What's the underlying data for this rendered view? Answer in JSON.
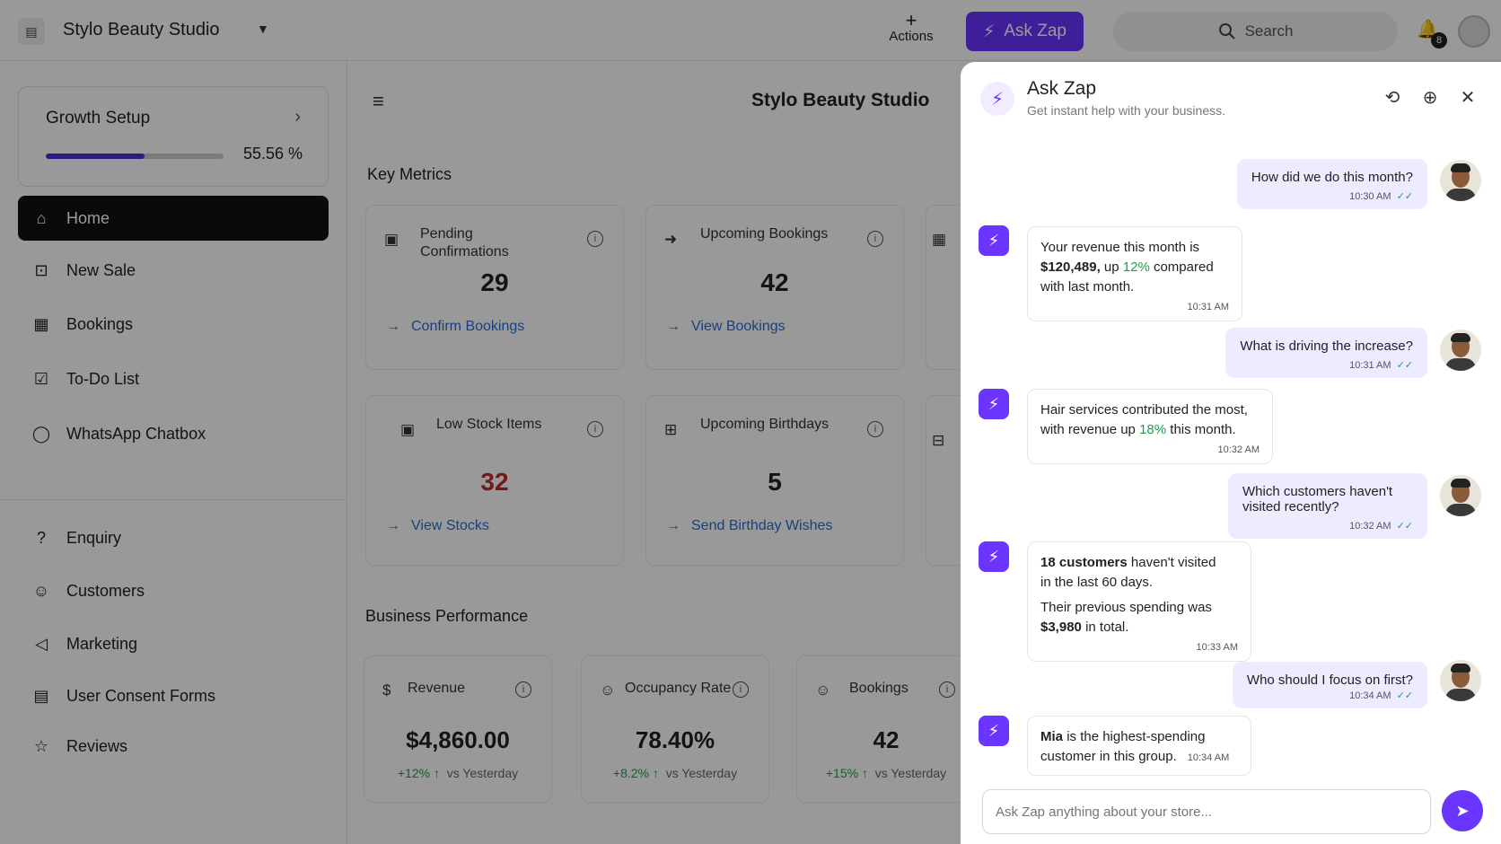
{
  "topbar": {
    "store_name": "Stylo Beauty Studio",
    "actions_label": "Actions",
    "askzap_label": "Ask Zap",
    "search_label": "Search",
    "notifications_count": "8"
  },
  "sidebar": {
    "growth": {
      "title": "Growth Setup",
      "progress_pct": "55.56 %",
      "progress_value": 55.56
    },
    "nav": [
      {
        "label": "Home",
        "icon": "home-icon",
        "active": true
      },
      {
        "label": "New Sale",
        "icon": "cart-icon"
      },
      {
        "label": "Bookings",
        "icon": "calendar-icon"
      },
      {
        "label": "To-Do List",
        "icon": "checkbox-icon"
      },
      {
        "label": "WhatsApp Chatbox",
        "icon": "whatsapp-icon"
      }
    ],
    "nav2": [
      {
        "label": "Enquiry",
        "icon": "question-icon"
      },
      {
        "label": "Customers",
        "icon": "users-icon"
      },
      {
        "label": "Marketing",
        "icon": "megaphone-icon"
      },
      {
        "label": "User Consent Forms",
        "icon": "document-icon"
      },
      {
        "label": "Reviews",
        "icon": "star-icon"
      }
    ]
  },
  "main": {
    "title": "Stylo Beauty Studio",
    "key_metrics_title": "Key Metrics",
    "cards": [
      {
        "title": "Pending Confirmations",
        "value": "29",
        "link": "Confirm Bookings"
      },
      {
        "title": "Upcoming Bookings",
        "value": "42",
        "link": "View Bookings"
      },
      {
        "title": "Low Stock Items",
        "value": "32",
        "link": "View Stocks",
        "alert": true
      },
      {
        "title": "Upcoming Birthdays",
        "value": "5",
        "link": "Send Birthday Wishes"
      }
    ],
    "business_title": "Business Performance",
    "perf": [
      {
        "title": "Revenue",
        "value": "$4,860.00",
        "change": "+12%",
        "compare": "vs Yesterday"
      },
      {
        "title": "Occupancy Rate",
        "value": "78.40%",
        "change": "+8.2%",
        "compare": "vs Yesterday"
      },
      {
        "title": "Bookings",
        "value": "42",
        "change": "+15%",
        "compare": "vs Yesterday"
      }
    ]
  },
  "panel": {
    "title": "Ask Zap",
    "subtitle": "Get instant help with your business.",
    "input_placeholder": "Ask Zap anything about your store...",
    "messages": {
      "u1": {
        "text": "How did we do this month?",
        "time": "10:30 AM"
      },
      "b1": {
        "t1": "Your revenue this month is",
        "bold": "$120,489,",
        "t2": "up",
        "green": "12%",
        "t3": "compared",
        "t4": "with last month.",
        "time": "10:31 AM"
      },
      "u2": {
        "text": "What is driving the increase?",
        "time": "10:31 AM"
      },
      "b2": {
        "t1": "Hair services contributed the most,",
        "t2": "with revenue up",
        "green": "18%",
        "t3": "this month.",
        "time": "10:32 AM"
      },
      "u3": {
        "line1": "Which customers haven't",
        "line2": "visited recently?",
        "time": "10:32 AM"
      },
      "b3": {
        "bold": "18 customers",
        "t1": "haven't visited",
        "t2": "in the last 60 days.",
        "t3": "Their previous spending was",
        "bold2": "$3,980",
        "t4": "in total.",
        "time": "10:33 AM"
      },
      "u4": {
        "text": "Who should I focus on first?",
        "time": "10:34 AM"
      },
      "b4": {
        "bold": "Mia",
        "t1": "is the highest-spending",
        "t2": "customer in this group.",
        "time": "10:34 AM"
      }
    }
  },
  "colors": {
    "accent": "#6a35ff",
    "positive": "#1e9e4a",
    "alert": "#c62828",
    "link": "#2a6bd6"
  }
}
